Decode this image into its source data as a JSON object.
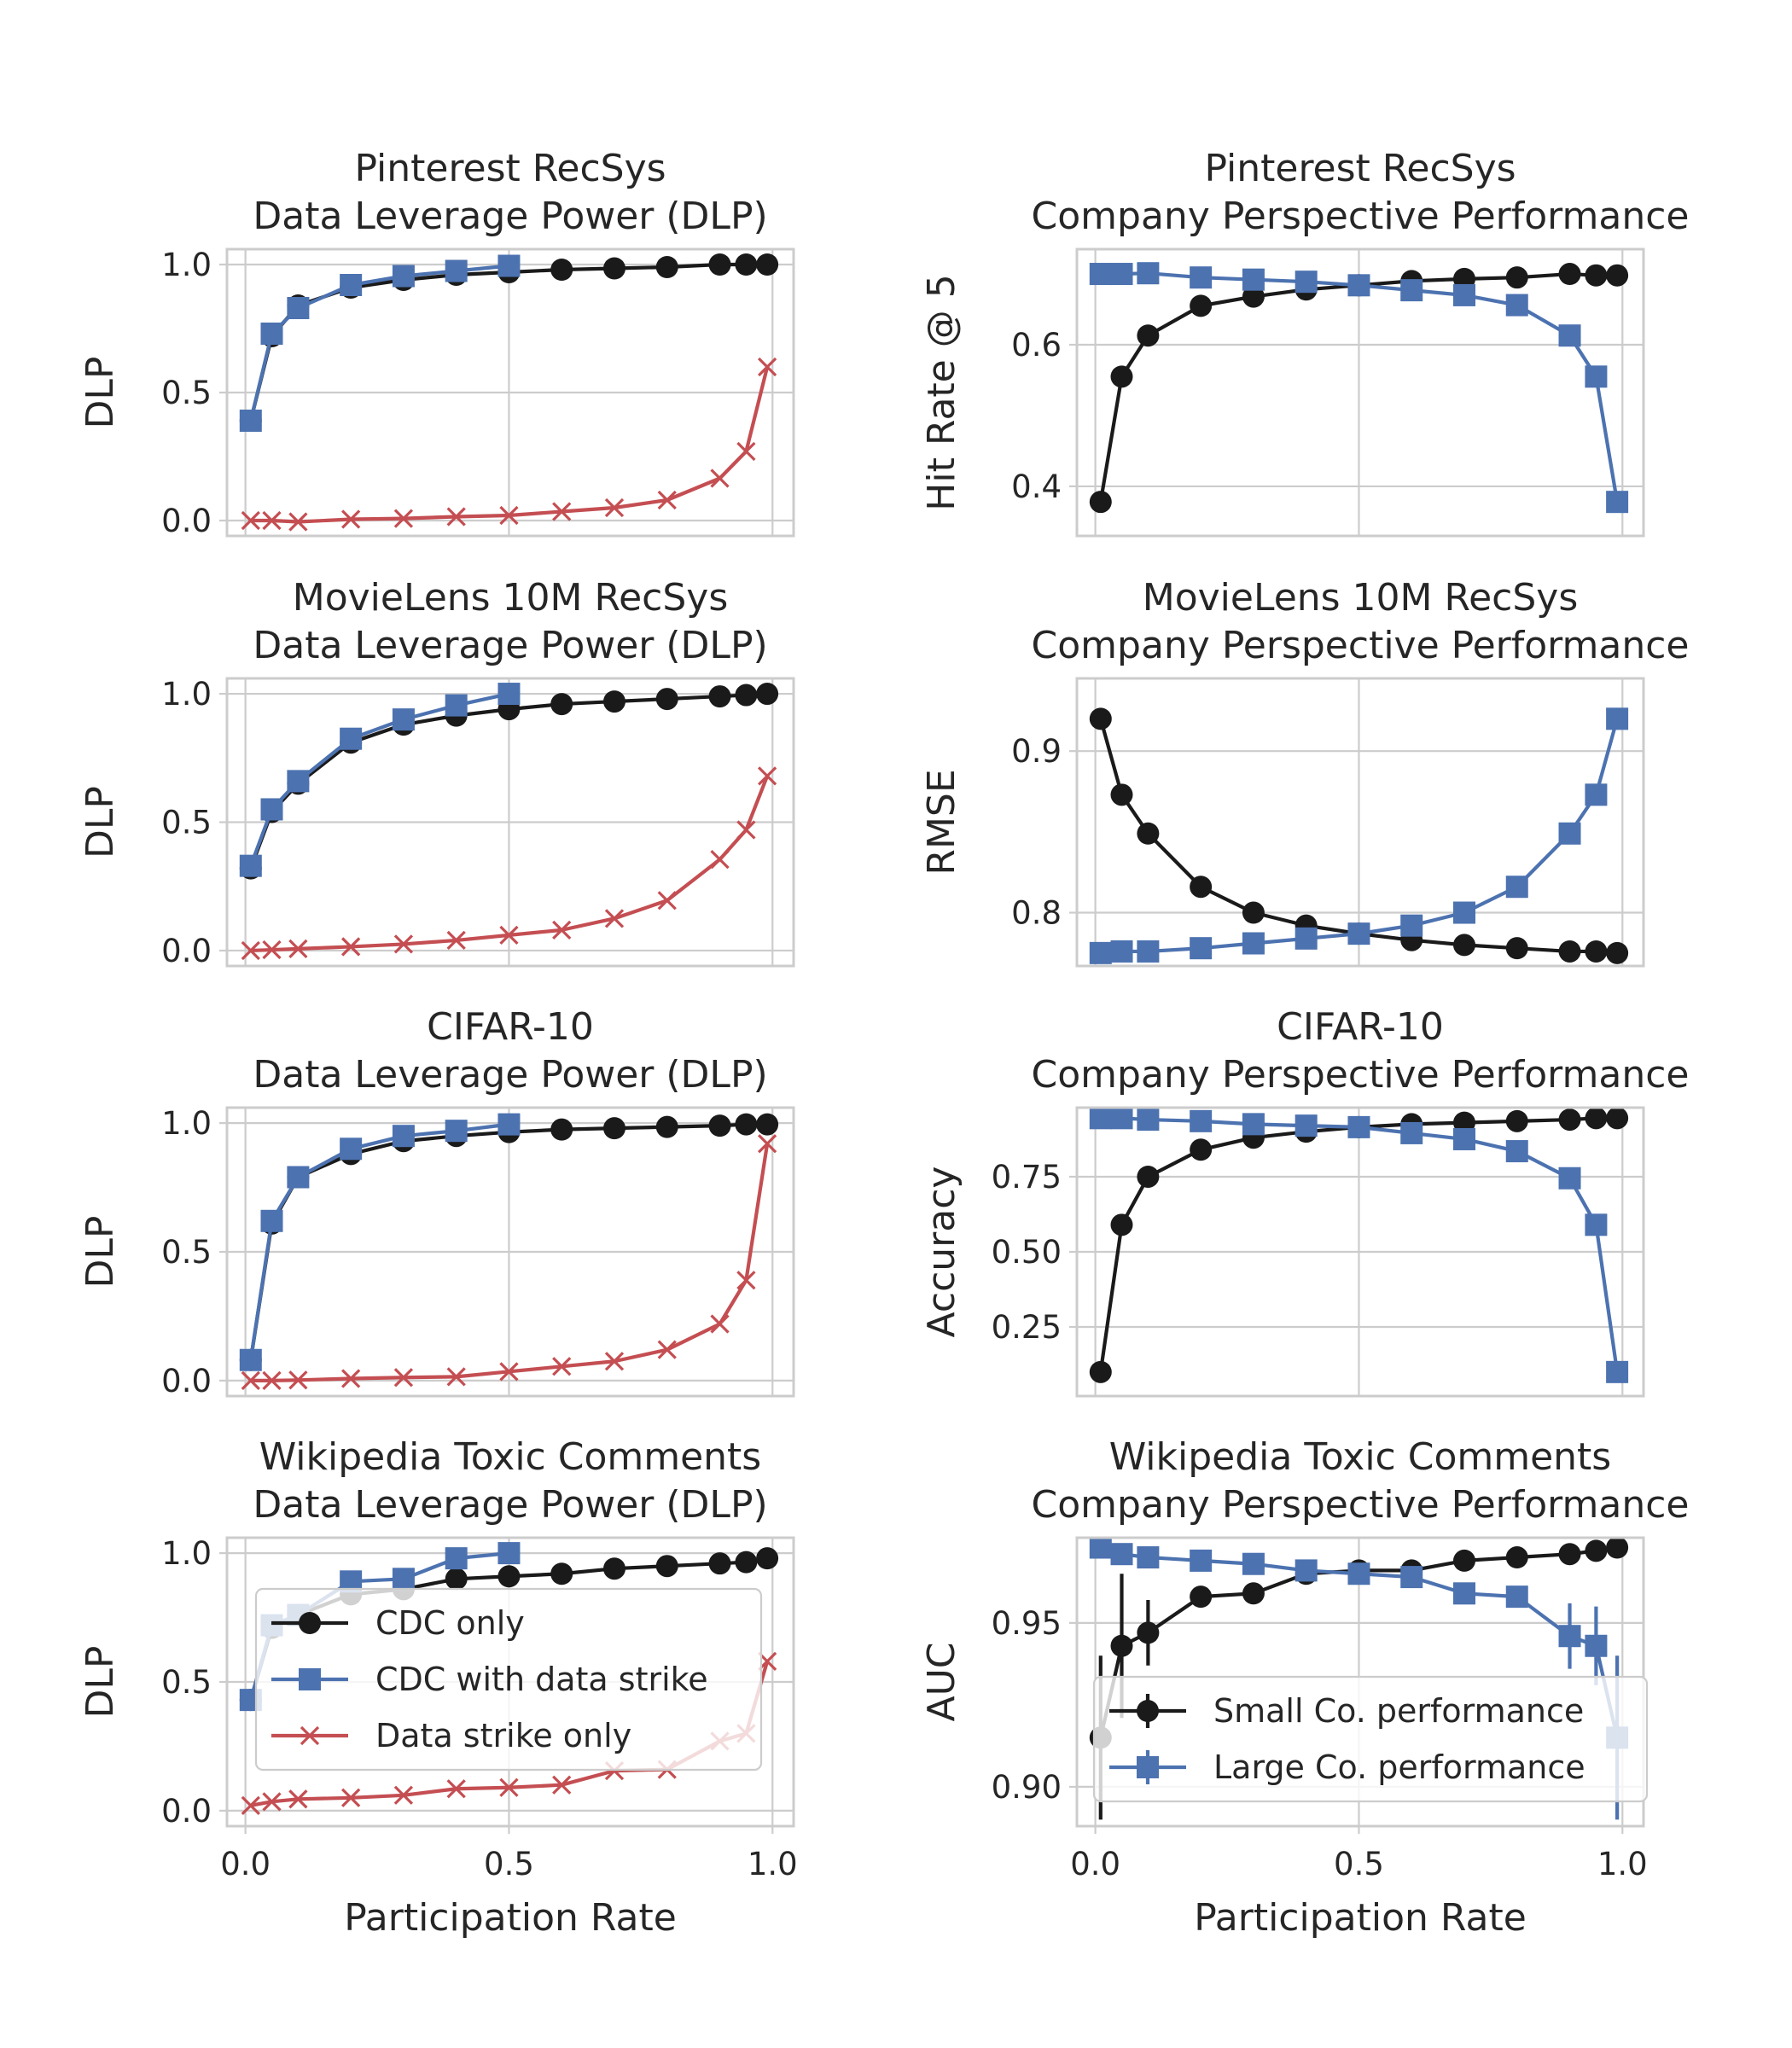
{
  "figure": {
    "x_axis_label": "Participation Rate",
    "x_ticks": [
      0.0,
      0.5,
      1.0
    ],
    "x_tick_labels": [
      "0.0",
      "0.5",
      "1.0"
    ],
    "grid": true
  },
  "chart_data": [
    {
      "type": "line",
      "title": "Pinterest RecSys\nData Leverage Power (DLP)",
      "xlabel": "",
      "ylabel": "DLP",
      "xlim": [
        -0.035,
        1.04
      ],
      "ylim": [
        -0.06,
        1.06
      ],
      "yticks": [
        0.0,
        0.5,
        1.0
      ],
      "ytick_labels": [
        "0.0",
        "0.5",
        "1.0"
      ],
      "series": [
        {
          "name": "CDC only",
          "color": "#1a1a1a",
          "marker": "circle",
          "x": [
            0.01,
            0.05,
            0.1,
            0.2,
            0.3,
            0.4,
            0.5,
            0.6,
            0.7,
            0.8,
            0.9,
            0.95,
            0.99
          ],
          "y": [
            0.39,
            0.72,
            0.84,
            0.91,
            0.94,
            0.96,
            0.97,
            0.98,
            0.985,
            0.99,
            1.0,
            1.0,
            1.0
          ]
        },
        {
          "name": "CDC with data strike",
          "color": "#4c72b0",
          "marker": "square",
          "x": [
            0.01,
            0.05,
            0.1,
            0.2,
            0.3,
            0.4,
            0.5
          ],
          "y": [
            0.39,
            0.73,
            0.83,
            0.92,
            0.955,
            0.975,
            0.995
          ]
        },
        {
          "name": "Data strike only",
          "color": "#c44e52",
          "marker": "x",
          "x": [
            0.01,
            0.05,
            0.1,
            0.2,
            0.3,
            0.4,
            0.5,
            0.6,
            0.7,
            0.8,
            0.9,
            0.95,
            0.99
          ],
          "y": [
            0.0,
            0.0,
            -0.005,
            0.005,
            0.008,
            0.015,
            0.02,
            0.035,
            0.05,
            0.08,
            0.165,
            0.27,
            0.6
          ]
        }
      ]
    },
    {
      "type": "line",
      "title": "Pinterest RecSys\nCompany Perspective Performance",
      "xlabel": "",
      "ylabel": "Hit Rate @ 5",
      "xlim": [
        -0.035,
        1.04
      ],
      "ylim": [
        0.33,
        0.735
      ],
      "yticks": [
        0.4,
        0.6
      ],
      "ytick_labels": [
        "0.4",
        "0.6"
      ],
      "series": [
        {
          "name": "Small Co. performance",
          "color": "#1a1a1a",
          "marker": "circle",
          "x": [
            0.01,
            0.05,
            0.1,
            0.2,
            0.3,
            0.4,
            0.5,
            0.6,
            0.7,
            0.8,
            0.9,
            0.95,
            0.99
          ],
          "y": [
            0.378,
            0.555,
            0.613,
            0.655,
            0.668,
            0.678,
            0.684,
            0.69,
            0.693,
            0.695,
            0.7,
            0.698,
            0.698
          ]
        },
        {
          "name": "Large Co. performance",
          "color": "#4c72b0",
          "marker": "square",
          "x": [
            0.01,
            0.05,
            0.1,
            0.2,
            0.3,
            0.4,
            0.5,
            0.6,
            0.7,
            0.8,
            0.9,
            0.95,
            0.99
          ],
          "y": [
            0.7,
            0.7,
            0.701,
            0.695,
            0.692,
            0.689,
            0.684,
            0.677,
            0.67,
            0.656,
            0.613,
            0.555,
            0.378
          ]
        }
      ]
    },
    {
      "type": "line",
      "title": "MovieLens 10M RecSys\nData Leverage Power (DLP)",
      "xlabel": "",
      "ylabel": "DLP",
      "xlim": [
        -0.035,
        1.04
      ],
      "ylim": [
        -0.06,
        1.06
      ],
      "yticks": [
        0.0,
        0.5,
        1.0
      ],
      "ytick_labels": [
        "0.0",
        "0.5",
        "1.0"
      ],
      "series": [
        {
          "name": "CDC only",
          "color": "#1a1a1a",
          "marker": "circle",
          "x": [
            0.01,
            0.05,
            0.1,
            0.2,
            0.3,
            0.4,
            0.5,
            0.6,
            0.7,
            0.8,
            0.9,
            0.95,
            0.99
          ],
          "y": [
            0.32,
            0.54,
            0.65,
            0.81,
            0.88,
            0.915,
            0.94,
            0.96,
            0.97,
            0.98,
            0.99,
            0.995,
            1.0
          ]
        },
        {
          "name": "CDC with data strike",
          "color": "#4c72b0",
          "marker": "square",
          "x": [
            0.01,
            0.05,
            0.1,
            0.2,
            0.3,
            0.4,
            0.5
          ],
          "y": [
            0.33,
            0.55,
            0.66,
            0.825,
            0.9,
            0.955,
            1.0
          ]
        },
        {
          "name": "Data strike only",
          "color": "#c44e52",
          "marker": "x",
          "x": [
            0.01,
            0.05,
            0.1,
            0.2,
            0.3,
            0.4,
            0.5,
            0.6,
            0.7,
            0.8,
            0.9,
            0.95,
            0.99
          ],
          "y": [
            0.0,
            0.003,
            0.007,
            0.015,
            0.025,
            0.04,
            0.06,
            0.08,
            0.125,
            0.195,
            0.355,
            0.47,
            0.68
          ]
        }
      ]
    },
    {
      "type": "line",
      "title": "MovieLens 10M RecSys\nCompany Perspective Performance",
      "xlabel": "",
      "ylabel": "RMSE",
      "xlim": [
        -0.035,
        1.04
      ],
      "ylim": [
        0.767,
        0.945
      ],
      "yticks": [
        0.8,
        0.9
      ],
      "ytick_labels": [
        "0.8",
        "0.9"
      ],
      "series": [
        {
          "name": "Small Co. performance",
          "color": "#1a1a1a",
          "marker": "circle",
          "x": [
            0.01,
            0.05,
            0.1,
            0.2,
            0.3,
            0.4,
            0.5,
            0.6,
            0.7,
            0.8,
            0.9,
            0.95,
            0.99
          ],
          "y": [
            0.92,
            0.873,
            0.849,
            0.816,
            0.8,
            0.792,
            0.787,
            0.783,
            0.78,
            0.778,
            0.776,
            0.776,
            0.775
          ]
        },
        {
          "name": "Large Co. performance",
          "color": "#4c72b0",
          "marker": "square",
          "x": [
            0.01,
            0.05,
            0.1,
            0.2,
            0.3,
            0.4,
            0.5,
            0.6,
            0.7,
            0.8,
            0.9,
            0.95,
            0.99
          ],
          "y": [
            0.775,
            0.776,
            0.776,
            0.778,
            0.781,
            0.784,
            0.787,
            0.792,
            0.8,
            0.816,
            0.849,
            0.873,
            0.92
          ]
        }
      ]
    },
    {
      "type": "line",
      "title": "CIFAR-10\nData Leverage Power (DLP)",
      "xlabel": "",
      "ylabel": "DLP",
      "xlim": [
        -0.035,
        1.04
      ],
      "ylim": [
        -0.06,
        1.06
      ],
      "yticks": [
        0.0,
        0.5,
        1.0
      ],
      "ytick_labels": [
        "0.0",
        "0.5",
        "1.0"
      ],
      "series": [
        {
          "name": "CDC only",
          "color": "#1a1a1a",
          "marker": "circle",
          "x": [
            0.01,
            0.05,
            0.1,
            0.2,
            0.3,
            0.4,
            0.5,
            0.6,
            0.7,
            0.8,
            0.9,
            0.95,
            0.99
          ],
          "y": [
            0.08,
            0.61,
            0.79,
            0.88,
            0.93,
            0.95,
            0.965,
            0.975,
            0.98,
            0.985,
            0.99,
            0.995,
            0.995
          ]
        },
        {
          "name": "CDC with data strike",
          "color": "#4c72b0",
          "marker": "square",
          "x": [
            0.01,
            0.05,
            0.1,
            0.2,
            0.3,
            0.4,
            0.5
          ],
          "y": [
            0.08,
            0.62,
            0.79,
            0.9,
            0.95,
            0.97,
            0.995
          ]
        },
        {
          "name": "Data strike only",
          "color": "#c44e52",
          "marker": "x",
          "x": [
            0.01,
            0.05,
            0.1,
            0.2,
            0.3,
            0.4,
            0.5,
            0.6,
            0.7,
            0.8,
            0.9,
            0.95,
            0.99
          ],
          "y": [
            0.0,
            0.0,
            0.002,
            0.008,
            0.012,
            0.015,
            0.035,
            0.055,
            0.075,
            0.12,
            0.22,
            0.39,
            0.92
          ]
        }
      ]
    },
    {
      "type": "line",
      "title": "CIFAR-10\nCompany Perspective Performance",
      "xlabel": "",
      "ylabel": "Accuracy",
      "xlim": [
        -0.035,
        1.04
      ],
      "ylim": [
        0.02,
        0.98
      ],
      "yticks": [
        0.25,
        0.5,
        0.75
      ],
      "ytick_labels": [
        "0.25",
        "0.50",
        "0.75"
      ],
      "series": [
        {
          "name": "Small Co. performance",
          "color": "#1a1a1a",
          "marker": "circle",
          "x": [
            0.01,
            0.05,
            0.1,
            0.2,
            0.3,
            0.4,
            0.5,
            0.6,
            0.7,
            0.8,
            0.9,
            0.95,
            0.99
          ],
          "y": [
            0.1,
            0.59,
            0.75,
            0.84,
            0.88,
            0.9,
            0.915,
            0.925,
            0.93,
            0.935,
            0.94,
            0.945,
            0.945
          ]
        },
        {
          "name": "Large Co. performance",
          "color": "#4c72b0",
          "marker": "square",
          "x": [
            0.01,
            0.05,
            0.1,
            0.2,
            0.3,
            0.4,
            0.5,
            0.6,
            0.7,
            0.8,
            0.9,
            0.95,
            0.99
          ],
          "y": [
            0.945,
            0.945,
            0.94,
            0.935,
            0.925,
            0.92,
            0.915,
            0.895,
            0.875,
            0.835,
            0.745,
            0.59,
            0.1
          ]
        }
      ]
    },
    {
      "type": "line",
      "title": "Wikipedia Toxic Comments\nData Leverage Power (DLP)",
      "xlabel": "Participation Rate",
      "ylabel": "DLP",
      "xlim": [
        -0.035,
        1.04
      ],
      "ylim": [
        -0.06,
        1.06
      ],
      "yticks": [
        0.0,
        0.5,
        1.0
      ],
      "ytick_labels": [
        "0.0",
        "0.5",
        "1.0"
      ],
      "legend": "upper-left",
      "series": [
        {
          "name": "CDC only",
          "color": "#1a1a1a",
          "marker": "circle",
          "x": [
            0.01,
            0.05,
            0.1,
            0.2,
            0.3,
            0.4,
            0.5,
            0.6,
            0.7,
            0.8,
            0.9,
            0.95,
            0.99
          ],
          "y": [
            0.43,
            0.71,
            0.76,
            0.84,
            0.86,
            0.9,
            0.91,
            0.92,
            0.94,
            0.95,
            0.96,
            0.965,
            0.98
          ]
        },
        {
          "name": "CDC with data strike",
          "color": "#4c72b0",
          "marker": "square",
          "x": [
            0.01,
            0.05,
            0.1,
            0.2,
            0.3,
            0.4,
            0.5
          ],
          "y": [
            0.43,
            0.72,
            0.76,
            0.89,
            0.9,
            0.98,
            1.0
          ]
        },
        {
          "name": "Data strike only",
          "color": "#c44e52",
          "marker": "x",
          "x": [
            0.01,
            0.05,
            0.1,
            0.2,
            0.3,
            0.4,
            0.5,
            0.6,
            0.7,
            0.8,
            0.9,
            0.95,
            0.99
          ],
          "y": [
            0.02,
            0.035,
            0.045,
            0.05,
            0.06,
            0.085,
            0.09,
            0.1,
            0.155,
            0.16,
            0.27,
            0.3,
            0.58
          ]
        }
      ]
    },
    {
      "type": "line",
      "title": "Wikipedia Toxic Comments\nCompany Perspective Performance",
      "xlabel": "Participation Rate",
      "ylabel": "AUC",
      "xlim": [
        -0.035,
        1.04
      ],
      "ylim": [
        0.888,
        0.976
      ],
      "yticks": [
        0.9,
        0.95
      ],
      "ytick_labels": [
        "0.90",
        "0.95"
      ],
      "legend": "lower-right",
      "series": [
        {
          "name": "Small Co. performance",
          "color": "#1a1a1a",
          "marker": "circle",
          "x": [
            0.01,
            0.05,
            0.1,
            0.2,
            0.3,
            0.4,
            0.5,
            0.6,
            0.7,
            0.8,
            0.9,
            0.95,
            0.99
          ],
          "y": [
            0.915,
            0.943,
            0.947,
            0.958,
            0.959,
            0.965,
            0.966,
            0.966,
            0.969,
            0.97,
            0.971,
            0.972,
            0.973
          ],
          "yerr": [
            0.025,
            0.022,
            0.01,
            0.003,
            0.002,
            0.002,
            0.001,
            0.001,
            0.001,
            0.001,
            0.001,
            0.001,
            0.001
          ]
        },
        {
          "name": "Large Co. performance",
          "color": "#4c72b0",
          "marker": "square",
          "x": [
            0.01,
            0.05,
            0.1,
            0.2,
            0.3,
            0.4,
            0.5,
            0.6,
            0.7,
            0.8,
            0.9,
            0.95,
            0.99
          ],
          "y": [
            0.973,
            0.971,
            0.97,
            0.969,
            0.968,
            0.966,
            0.965,
            0.964,
            0.959,
            0.958,
            0.946,
            0.943,
            0.915
          ],
          "yerr": [
            0.001,
            0.001,
            0.001,
            0.001,
            0.001,
            0.001,
            0.001,
            0.002,
            0.002,
            0.003,
            0.01,
            0.012,
            0.025
          ]
        }
      ]
    }
  ]
}
